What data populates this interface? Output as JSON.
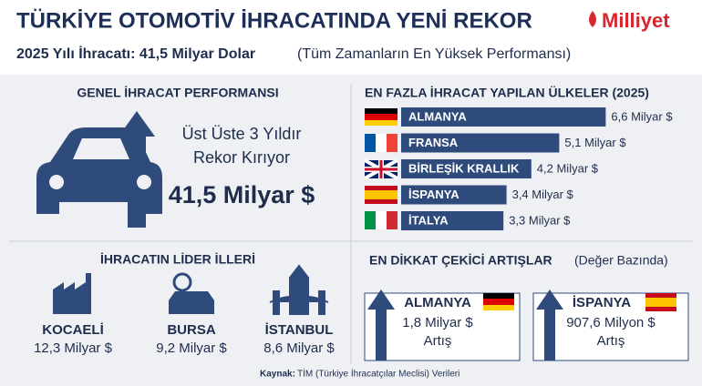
{
  "header": {
    "title": "TÜRKİYE OTOMOTİV İHRACATINDA YENİ REKOR",
    "brand": "Milliyet",
    "subtitle_bold": "2025 Yılı İhracatı: 41,5 Milyar Dolar",
    "subtitle_note": "(Tüm Zamanların En Yüksek Performansı)"
  },
  "performance": {
    "title": "GENEL İHRACAT PERFORMANSI",
    "line1": "Üst Üste 3 Yıldır",
    "line2": "Rekor Kırıyor",
    "amount": "41,5 Milyar $"
  },
  "countries": {
    "title": "EN FAZLA İHRACAT YAPILAN ÜLKELER (2025)",
    "categories": [
      "ALMANYA",
      "FRANSA",
      "BİRLEŞİK KRALLIK",
      "İSPANYA",
      "İTALYA"
    ],
    "values": [
      6.6,
      5.1,
      4.2,
      3.4,
      3.3
    ],
    "value_labels": [
      "6,6 Milyar $",
      "5,1 Milyar $",
      "4,2 Milyar $",
      "3,4 Milyar $",
      "3,3 Milyar $"
    ],
    "color": "#2f4b7c"
  },
  "provinces": {
    "title": "İHRACATIN LİDER İLLERİ",
    "items": [
      {
        "name": "KOCAELİ",
        "value": "12,3 Milyar $"
      },
      {
        "name": "BURSA",
        "value": "9,2 Milyar $"
      },
      {
        "name": "İSTANBUL",
        "value": "8,6 Milyar $"
      }
    ]
  },
  "increases": {
    "title": "EN DİKKAT ÇEKİCİ ARTIŞLAR",
    "note": "(Değer Bazında)",
    "items": [
      {
        "country": "ALMANYA",
        "amount": "1,8 Milyar $",
        "label": "Artış"
      },
      {
        "country": "İSPANYA",
        "amount": "907,6 Milyon $",
        "label": "Artış"
      }
    ]
  },
  "source": {
    "label": "Kaynak:",
    "text": "TİM (Türkiye İhracatçılar Meclisi) Verileri"
  }
}
